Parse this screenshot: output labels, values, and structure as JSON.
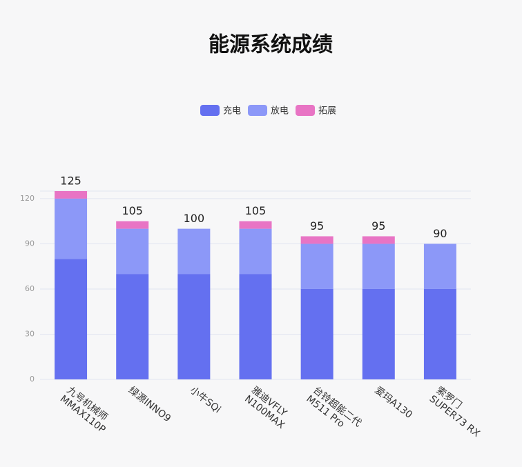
{
  "chart_data": {
    "type": "stacked-bar",
    "title": "能源系统成绩",
    "categories": [
      [
        "九号机械师",
        "MMAX110P"
      ],
      [
        "绿源INNO9"
      ],
      [
        "小牛SQi"
      ],
      [
        "雅迪VFLY",
        "N100MAX"
      ],
      [
        "台铃超能二代",
        "M511 Pro"
      ],
      [
        "爱玛A130"
      ],
      [
        "索罗门",
        "SUPER73 RX"
      ]
    ],
    "series": [
      {
        "name": "充电",
        "color": "#6470f0",
        "values": [
          80,
          70,
          70,
          70,
          60,
          60,
          60
        ]
      },
      {
        "name": "放电",
        "color": "#8c98f8",
        "values": [
          40,
          30,
          30,
          30,
          30,
          30,
          30
        ]
      },
      {
        "name": "拓展",
        "color": "#e874c4",
        "values": [
          5,
          5,
          0,
          5,
          5,
          5,
          0
        ]
      }
    ],
    "totals": [
      125,
      105,
      100,
      105,
      95,
      95,
      90
    ],
    "ylim": [
      0,
      125
    ],
    "yticks": [
      0,
      30,
      60,
      90,
      120
    ],
    "grid": true
  }
}
